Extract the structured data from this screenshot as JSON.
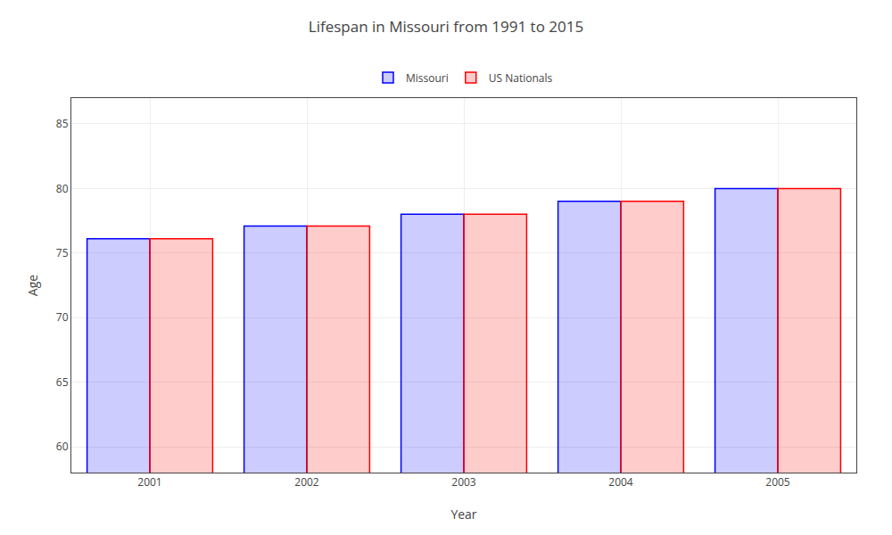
{
  "chart_data": {
    "type": "bar",
    "title": "Lifespan in Missouri from 1991 to 2015",
    "x_label": "Year",
    "y_label": "Age",
    "categories": [
      "2001",
      "2002",
      "2003",
      "2004",
      "2005"
    ],
    "series": [
      {
        "name": "Missouri",
        "color": "#0000ff",
        "values": [
          76.1,
          77.1,
          78.0,
          79.0,
          80.0
        ]
      },
      {
        "name": "US Nationals",
        "color": "#ff0000",
        "values": [
          76.1,
          77.1,
          78.0,
          79.0,
          80.0
        ]
      }
    ],
    "ylim": [
      58,
      87
    ],
    "yticks": [
      60,
      65,
      70,
      75,
      80,
      85
    ],
    "grid": true,
    "legend": "top"
  }
}
